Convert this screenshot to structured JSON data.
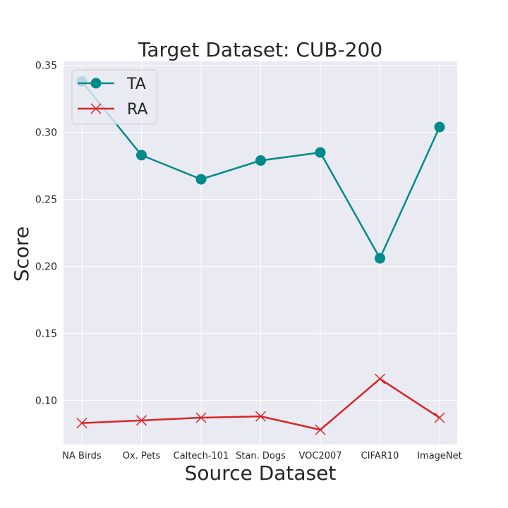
{
  "chart_data": {
    "type": "line",
    "title": "Target Dataset: CUB-200",
    "xlabel": "Source Dataset",
    "ylabel": "Score",
    "categories": [
      "NA Birds",
      "Ox. Pets",
      "Caltech-101",
      "Stan. Dogs",
      "VOC2007",
      "CIFAR10",
      "ImageNet"
    ],
    "ylim": [
      0.067,
      0.353
    ],
    "yticks": [
      "0.10",
      "0.15",
      "0.20",
      "0.25",
      "0.30",
      "0.35"
    ],
    "grid": true,
    "legend_position": "top-left",
    "series": [
      {
        "name": "TA",
        "color": "#008b8b",
        "marker": "circle",
        "values": [
          0.338,
          0.283,
          0.265,
          0.279,
          0.285,
          0.206,
          0.304
        ]
      },
      {
        "name": "RA",
        "color": "#d62728",
        "marker": "x",
        "values": [
          0.083,
          0.085,
          0.087,
          0.088,
          0.078,
          0.116,
          0.087
        ]
      }
    ]
  }
}
